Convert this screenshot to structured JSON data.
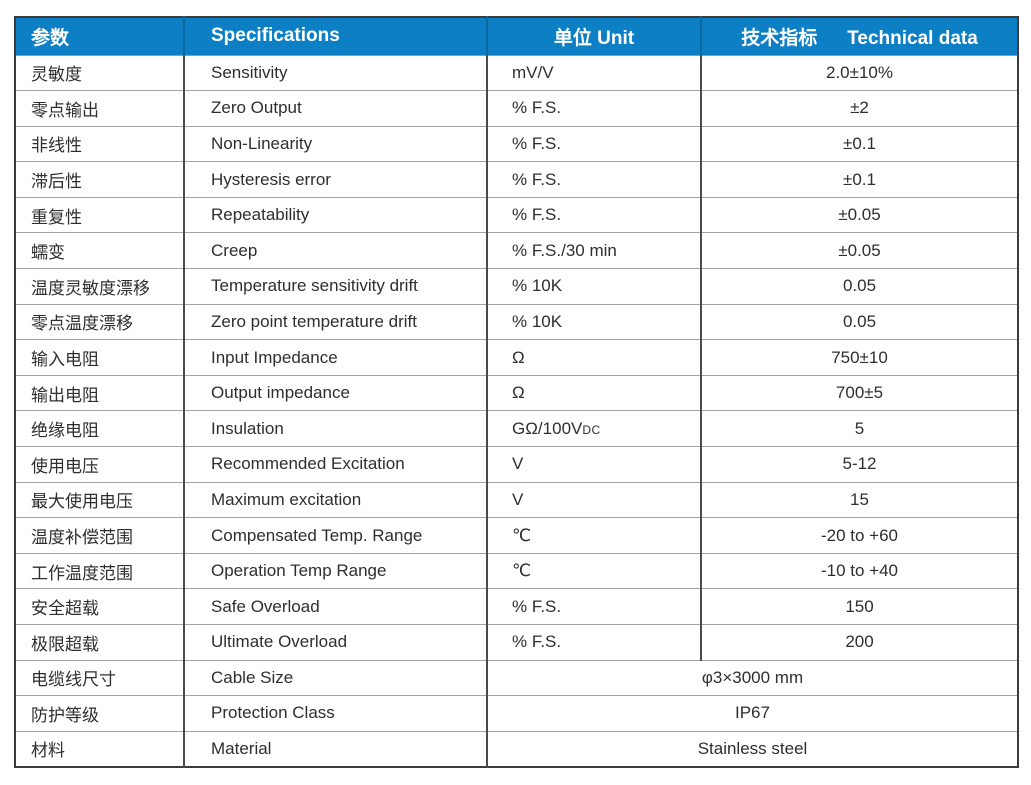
{
  "colors": {
    "header_background": "#0d80c5",
    "header_text": "#ffffff",
    "body_text": "#2e2e2e",
    "outer_border": "#3c3c3c",
    "vertical_gridline": "#4a4a4a",
    "horizontal_gridline": "#a3a3a3",
    "page_background": "#ffffff"
  },
  "table": {
    "header": {
      "param_zh": "参数",
      "specifications_en": "Specifications",
      "unit_label": "单位 Unit",
      "technical_zh": "技术指标",
      "technical_en": "Technical data"
    },
    "rows": [
      {
        "param": "灵敏度",
        "spec": "Sensitivity",
        "unit": "mV/V",
        "value": "2.0±10%"
      },
      {
        "param": "零点输出",
        "spec": "Zero Output",
        "unit": "% F.S.",
        "value": "±2"
      },
      {
        "param": "非线性",
        "spec": "Non-Linearity",
        "unit": "% F.S.",
        "value": "±0.1"
      },
      {
        "param": "滞后性",
        "spec": "Hysteresis error",
        "unit": "% F.S.",
        "value": "±0.1"
      },
      {
        "param": "重复性",
        "spec": "Repeatability",
        "unit": "% F.S.",
        "value": "±0.05"
      },
      {
        "param": "蠕变",
        "spec": "Creep",
        "unit": "% F.S./30 min",
        "value": "±0.05"
      },
      {
        "param": "温度灵敏度漂移",
        "spec": "Temperature sensitivity drift",
        "unit": "% 10K",
        "value": "0.05"
      },
      {
        "param": "零点温度漂移",
        "spec": "Zero point temperature drift",
        "unit": "% 10K",
        "value": "0.05"
      },
      {
        "param": "输入电阻",
        "spec": "Input Impedance",
        "unit": "Ω",
        "value": "750±10"
      },
      {
        "param": "输出电阻",
        "spec": "Output impedance",
        "unit": "Ω",
        "value": "700±5"
      },
      {
        "param": "绝缘电阻",
        "spec": "Insulation",
        "unit": "GΩ/100V",
        "unit_sub": "DC",
        "value": "5"
      },
      {
        "param": "使用电压",
        "spec": "Recommended Excitation",
        "unit": "V",
        "value": "5-12"
      },
      {
        "param": "最大使用电压",
        "spec": "Maximum excitation",
        "unit": "V",
        "value": "15"
      },
      {
        "param": "温度补偿范围",
        "spec": "Compensated Temp. Range",
        "unit": "℃",
        "value": "-20 to +60"
      },
      {
        "param": "工作温度范围",
        "spec": "Operation Temp Range",
        "unit": "℃",
        "value": "-10 to +40"
      },
      {
        "param": "安全超载",
        "spec": "Safe Overload",
        "unit": "% F.S.",
        "value": "150"
      },
      {
        "param": "极限超载",
        "spec": "Ultimate Overload",
        "unit": "% F.S.",
        "value": "200"
      },
      {
        "param": "电缆线尺寸",
        "spec": "Cable Size",
        "merged_value": "φ3×3000 mm"
      },
      {
        "param": "防护等级",
        "spec": "Protection Class",
        "merged_value": "IP67"
      },
      {
        "param": "材料",
        "spec": "Material",
        "merged_value": "Stainless steel"
      }
    ]
  }
}
